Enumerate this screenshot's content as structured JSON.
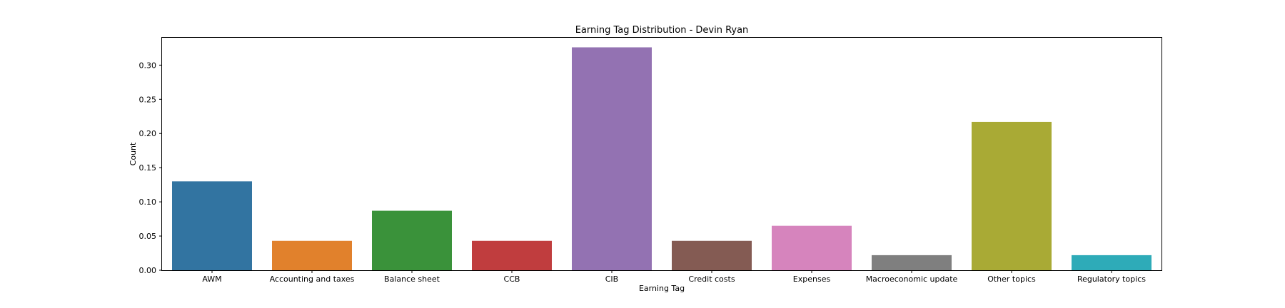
{
  "chart_data": {
    "type": "bar",
    "title": "Earning Tag Distribution - Devin Ryan",
    "xlabel": "Earning Tag",
    "ylabel": "Count",
    "ylim": [
      0,
      0.34
    ],
    "yticks": [
      "0.00",
      "0.05",
      "0.10",
      "0.15",
      "0.20",
      "0.25",
      "0.30"
    ],
    "grid": false,
    "categories": [
      "AWM",
      "Accounting and taxes",
      "Balance sheet",
      "CCB",
      "CIB",
      "Credit costs",
      "Expenses",
      "Macroeconomic update",
      "Other topics",
      "Regulatory topics"
    ],
    "values": [
      0.13,
      0.043,
      0.087,
      0.043,
      0.326,
      0.043,
      0.065,
      0.022,
      0.217,
      0.022
    ],
    "colors": [
      "#3274a1",
      "#e1812c",
      "#3a923a",
      "#c03d3e",
      "#9372b2",
      "#845b53",
      "#d684bd",
      "#7f7f7f",
      "#a9aa35",
      "#2eabb8"
    ]
  }
}
